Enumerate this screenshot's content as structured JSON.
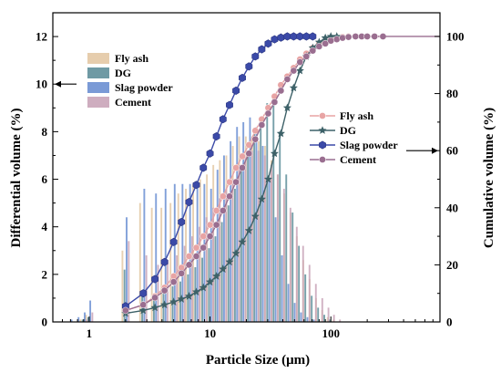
{
  "chart_data": {
    "type": "bar+line",
    "xlabel": "Particle Size (μm)",
    "ylabel_left": "Differential volume (%)",
    "ylabel_right": "Cumulative volume (%)",
    "x_scale": "log",
    "xlim": [
      0.5,
      800
    ],
    "ylim_left": [
      0,
      13
    ],
    "ylim_right": [
      0,
      108.3
    ],
    "x_ticks": [
      {
        "v": 1,
        "label": "1"
      },
      {
        "v": 10,
        "label": "10"
      },
      {
        "v": 100,
        "label": "100"
      }
    ],
    "y_ticks_left": [
      0,
      2,
      4,
      6,
      8,
      10,
      12
    ],
    "y_ticks_right": [
      0,
      20,
      40,
      60,
      80,
      100
    ],
    "bar_legend": {
      "placement": "top-left",
      "entries": [
        {
          "name": "Fly ash",
          "color": "#e3c8a4"
        },
        {
          "name": "DG",
          "color": "#5f8f9a"
        },
        {
          "name": "Slag powder",
          "color": "#6b8fd2"
        },
        {
          "name": "Cement",
          "color": "#c9a4b8"
        }
      ]
    },
    "line_legend": {
      "placement": "center-right",
      "entries": [
        {
          "name": "Fly ash",
          "color": "#e8a4a4",
          "marker": "circle"
        },
        {
          "name": "DG",
          "color": "#3d6168",
          "marker": "star"
        },
        {
          "name": "Slag powder",
          "color": "#3b4aa8",
          "marker": "hexagon"
        },
        {
          "name": "Cement",
          "color": "#9a6e90",
          "marker": "circle"
        }
      ]
    },
    "annotations": {
      "left_arrow_target_value": 10,
      "right_arrow_target_value": 60
    },
    "bar_x": [
      0.5,
      0.6,
      0.7,
      0.8,
      0.9,
      1.0,
      2.0,
      2.8,
      3.5,
      4.2,
      5.0,
      5.8,
      6.7,
      7.7,
      8.8,
      10.0,
      11.3,
      12.8,
      14.5,
      16.4,
      18.5,
      21.0,
      23.7,
      26.8,
      30.3,
      34.2,
      38.6,
      43.6,
      49.2,
      55.5,
      62.7,
      70.8,
      80.0,
      90.0,
      100.0,
      112.0,
      125.0
    ],
    "bar_series": [
      {
        "name": "Fly ash",
        "values": [
          0,
          0,
          0,
          0,
          0.1,
          0.3,
          3.0,
          5.0,
          4.8,
          4.8,
          5.0,
          5.4,
          5.6,
          5.8,
          6.0,
          6.2,
          6.6,
          6.8,
          7.0,
          7.4,
          7.8,
          7.8,
          7.8,
          7.6,
          7.4,
          6.8,
          6.2,
          5.4,
          4.6,
          3.6,
          2.6,
          1.8,
          1.0,
          0.5,
          0.2,
          0.1,
          0
        ]
      },
      {
        "name": "DG",
        "values": [
          0,
          0,
          0,
          0,
          0.1,
          0.2,
          2.2,
          1.2,
          1.2,
          1.3,
          1.5,
          1.7,
          2.0,
          2.3,
          2.7,
          3.1,
          3.6,
          4.2,
          4.9,
          5.6,
          6.4,
          7.2,
          8.0,
          8.6,
          9.2,
          9.6,
          8.0,
          6.2,
          4.6,
          3.2,
          2.0,
          1.1,
          0.6,
          0.3,
          0.1,
          0,
          0
        ]
      },
      {
        "name": "Slag powder",
        "values": [
          0,
          0,
          0.1,
          0.2,
          0.4,
          0.9,
          4.4,
          5.6,
          5.4,
          5.6,
          5.8,
          5.8,
          5.8,
          5.9,
          5.8,
          5.6,
          6.4,
          7.0,
          7.6,
          8.2,
          8.4,
          8.6,
          8.2,
          7.4,
          6.0,
          4.4,
          2.8,
          1.6,
          0.8,
          0.4,
          0.2,
          0.1,
          0,
          0,
          0,
          0,
          0
        ]
      },
      {
        "name": "Cement",
        "values": [
          0,
          0,
          0,
          0,
          0.1,
          0.4,
          3.4,
          2.8,
          2.4,
          2.6,
          2.8,
          3.2,
          3.6,
          4.0,
          4.4,
          4.8,
          5.2,
          5.6,
          6.0,
          6.6,
          7.0,
          7.2,
          7.2,
          7.0,
          6.6,
          6.2,
          5.6,
          4.8,
          4.0,
          3.2,
          2.4,
          1.6,
          1.0,
          0.6,
          0.3,
          0.1,
          0
        ]
      }
    ],
    "cum_series": [
      {
        "name": "Fly ash",
        "x": [
          2.0,
          2.8,
          3.5,
          4.2,
          5.0,
          5.8,
          6.7,
          7.7,
          8.8,
          10.0,
          11.3,
          12.8,
          14.5,
          16.4,
          18.5,
          21.0,
          23.7,
          26.8,
          30.3,
          34.2,
          38.6,
          43.6,
          49.2,
          55.5,
          62.7,
          70.8,
          80.0,
          90.0,
          100.0,
          112.0,
          125.0,
          140.0,
          160.0,
          180.0,
          200.0,
          230.0,
          270.0
        ],
        "y": [
          4,
          6,
          9,
          12,
          16,
          19,
          23,
          26,
          30,
          34,
          39,
          44,
          49,
          54,
          58,
          62,
          67,
          71,
          75,
          79,
          83,
          86,
          89,
          92,
          94,
          96,
          97.5,
          98.5,
          99,
          99.5,
          99.8,
          100,
          100,
          100,
          100,
          100,
          100
        ]
      },
      {
        "name": "DG",
        "x": [
          2.0,
          2.8,
          3.5,
          4.2,
          5.0,
          5.8,
          6.7,
          7.7,
          8.8,
          10.0,
          11.3,
          12.8,
          14.5,
          16.4,
          18.5,
          21.0,
          23.7,
          26.8,
          30.3,
          34.2,
          38.6,
          43.6,
          49.2,
          55.5,
          62.7,
          70.8,
          80.0,
          90.0,
          100.0,
          112.0
        ],
        "y": [
          3,
          4,
          5,
          6,
          7,
          8,
          9,
          10.5,
          12,
          14,
          16,
          18.5,
          21,
          24,
          28,
          32,
          37,
          43,
          50,
          59,
          66,
          75,
          82,
          88,
          93,
          96,
          98,
          99.5,
          100,
          100
        ]
      },
      {
        "name": "Slag powder",
        "x": [
          2.0,
          2.8,
          3.5,
          4.2,
          5.0,
          5.8,
          6.7,
          7.7,
          8.8,
          10.0,
          11.3,
          12.8,
          14.5,
          16.4,
          18.5,
          21.0,
          23.7,
          26.8,
          30.3,
          34.2,
          38.6,
          43.6,
          49.2,
          55.5,
          62.7,
          70.8
        ],
        "y": [
          5.5,
          10,
          15,
          21,
          28,
          35,
          42,
          48,
          54,
          59,
          65,
          71,
          76,
          81,
          85.5,
          89.5,
          93,
          95.5,
          97.5,
          99,
          99.6,
          100,
          100,
          100,
          100,
          100
        ]
      },
      {
        "name": "Cement",
        "x": [
          2.0,
          2.8,
          3.5,
          4.2,
          5.0,
          5.8,
          6.7,
          7.7,
          8.8,
          10.0,
          11.3,
          12.8,
          14.5,
          16.4,
          18.5,
          21.0,
          23.7,
          26.8,
          30.3,
          34.2,
          38.6,
          43.6,
          49.2,
          55.5,
          62.7,
          70.8,
          80.0,
          90.0,
          100.0,
          112.0,
          125.0,
          140.0,
          160.0,
          180.0,
          200.0,
          230.0,
          270.0
        ],
        "y": [
          4,
          6,
          8.5,
          11,
          14,
          17,
          20,
          23,
          26,
          30,
          34,
          39,
          44,
          49,
          54,
          59,
          64,
          69,
          73,
          77,
          81,
          85,
          88,
          91,
          93,
          95,
          96.5,
          97.5,
          98.5,
          99,
          99.5,
          99.8,
          100,
          100,
          100,
          100,
          100
        ]
      }
    ]
  }
}
